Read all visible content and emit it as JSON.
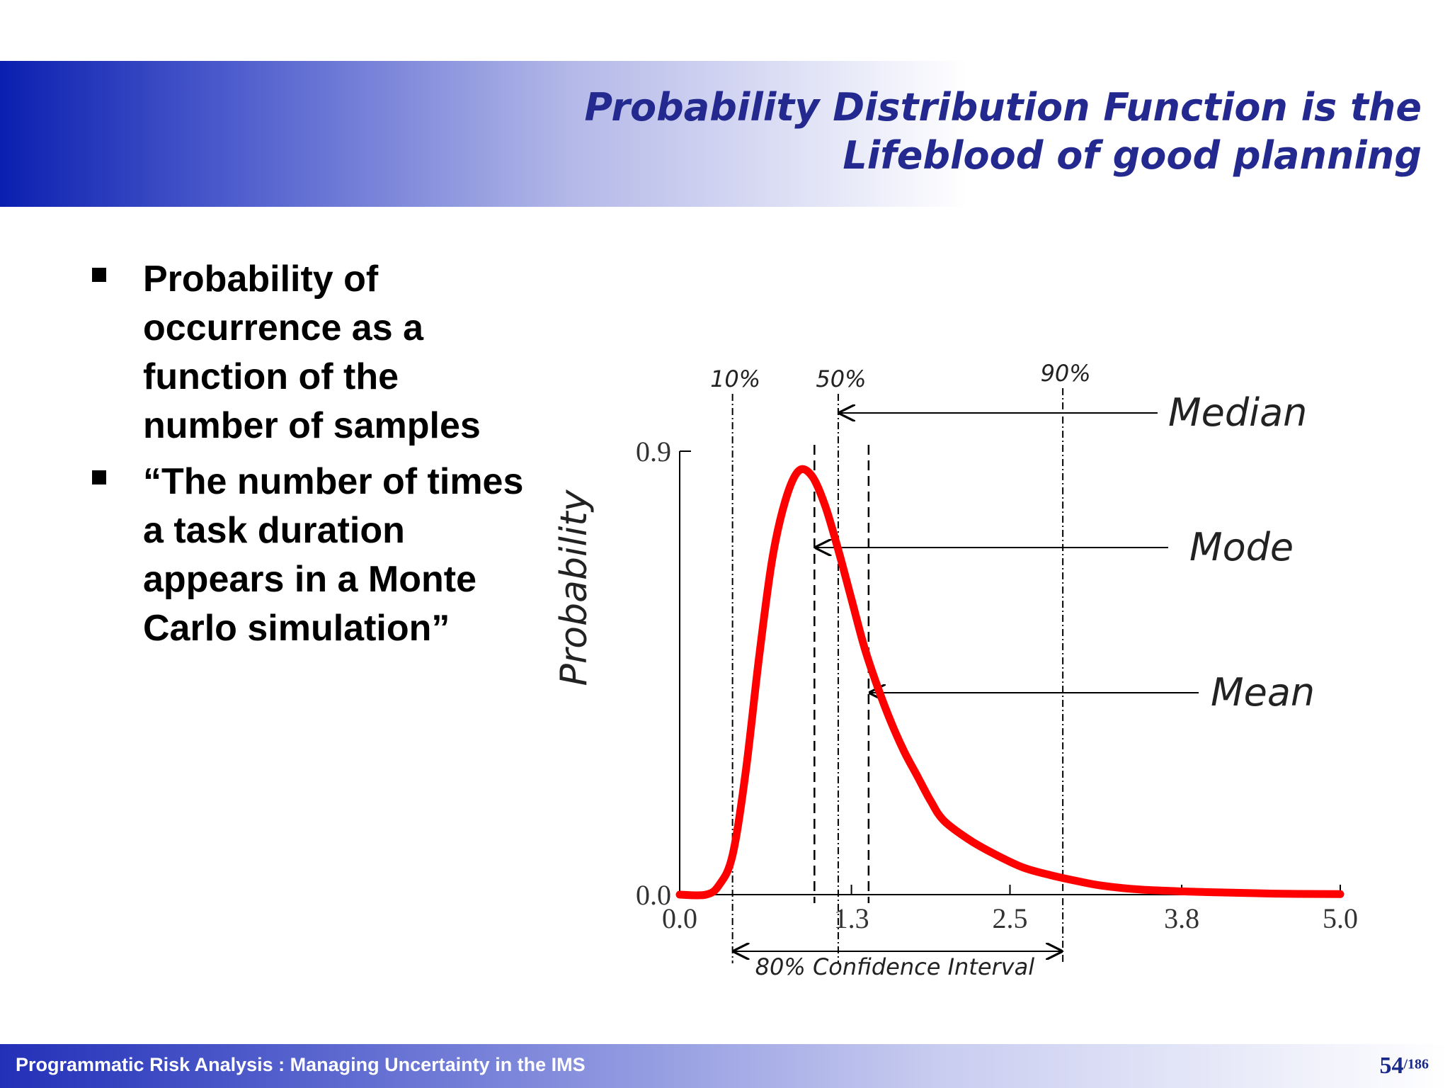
{
  "slide": {
    "title_line1": "Probability Distribution Function is the",
    "title_line2": "Lifeblood of good planning",
    "bullets": [
      "Probability of occurrence as a function of the number of samples",
      "“The number of times a task duration appears in a Monte Carlo simulation”"
    ]
  },
  "chart_data": {
    "type": "line",
    "ylabel": "Probability",
    "x_ticks": [
      "0.0",
      "1.3",
      "2.5",
      "3.8",
      "5.0"
    ],
    "y_ticks": [
      "0.9",
      "0.0"
    ],
    "xlim": [
      0,
      5
    ],
    "ylim": [
      0,
      0.9
    ],
    "series": [
      {
        "color": "#ff0000",
        "x": [
          0.0,
          0.2,
          0.3,
          0.4,
          0.5,
          0.6,
          0.7,
          0.8,
          0.9,
          1.0,
          1.1,
          1.2,
          1.3,
          1.4,
          1.5,
          1.6,
          1.7,
          1.8,
          1.9,
          2.0,
          2.2,
          2.4,
          2.6,
          2.8,
          3.0,
          3.2,
          3.5,
          4.0,
          4.5,
          5.0
        ],
        "y": [
          0.0,
          0.0,
          0.02,
          0.08,
          0.25,
          0.48,
          0.68,
          0.8,
          0.86,
          0.85,
          0.79,
          0.7,
          0.6,
          0.5,
          0.42,
          0.35,
          0.29,
          0.24,
          0.19,
          0.15,
          0.11,
          0.08,
          0.055,
          0.04,
          0.028,
          0.018,
          0.01,
          0.005,
          0.002,
          0.001
        ]
      }
    ],
    "percentile_markers": [
      {
        "label": "10%",
        "x": 0.4
      },
      {
        "label": "50%",
        "x": 1.2
      },
      {
        "label": "90%",
        "x": 2.9
      }
    ],
    "annotations": [
      {
        "label": "Median",
        "x": 1.2
      },
      {
        "label": "Mode",
        "x": 1.02
      },
      {
        "label": "Mean",
        "x": 1.43
      }
    ],
    "interval_label": "80% Confidence Interval",
    "grid": false
  },
  "footer": {
    "text": "Programmatic Risk Analysis : Managing Uncertainty in the IMS",
    "page": "54",
    "total": "/186"
  }
}
